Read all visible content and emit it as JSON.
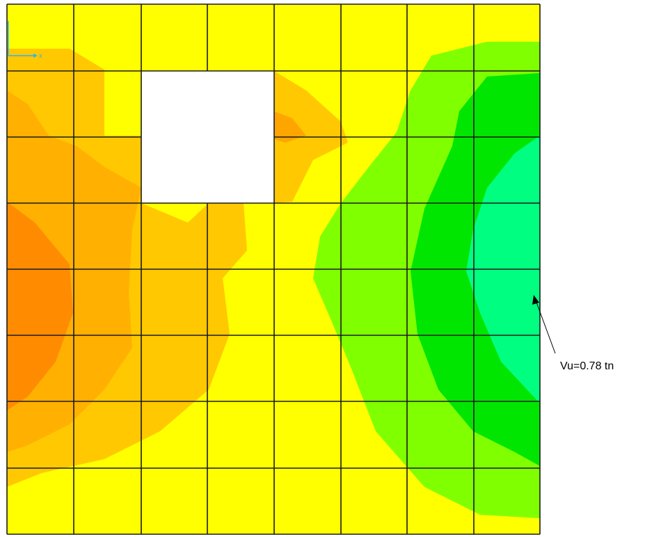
{
  "annotation": {
    "label": "Vu=0.78 tn"
  },
  "axes": {
    "x": "x"
  }
}
